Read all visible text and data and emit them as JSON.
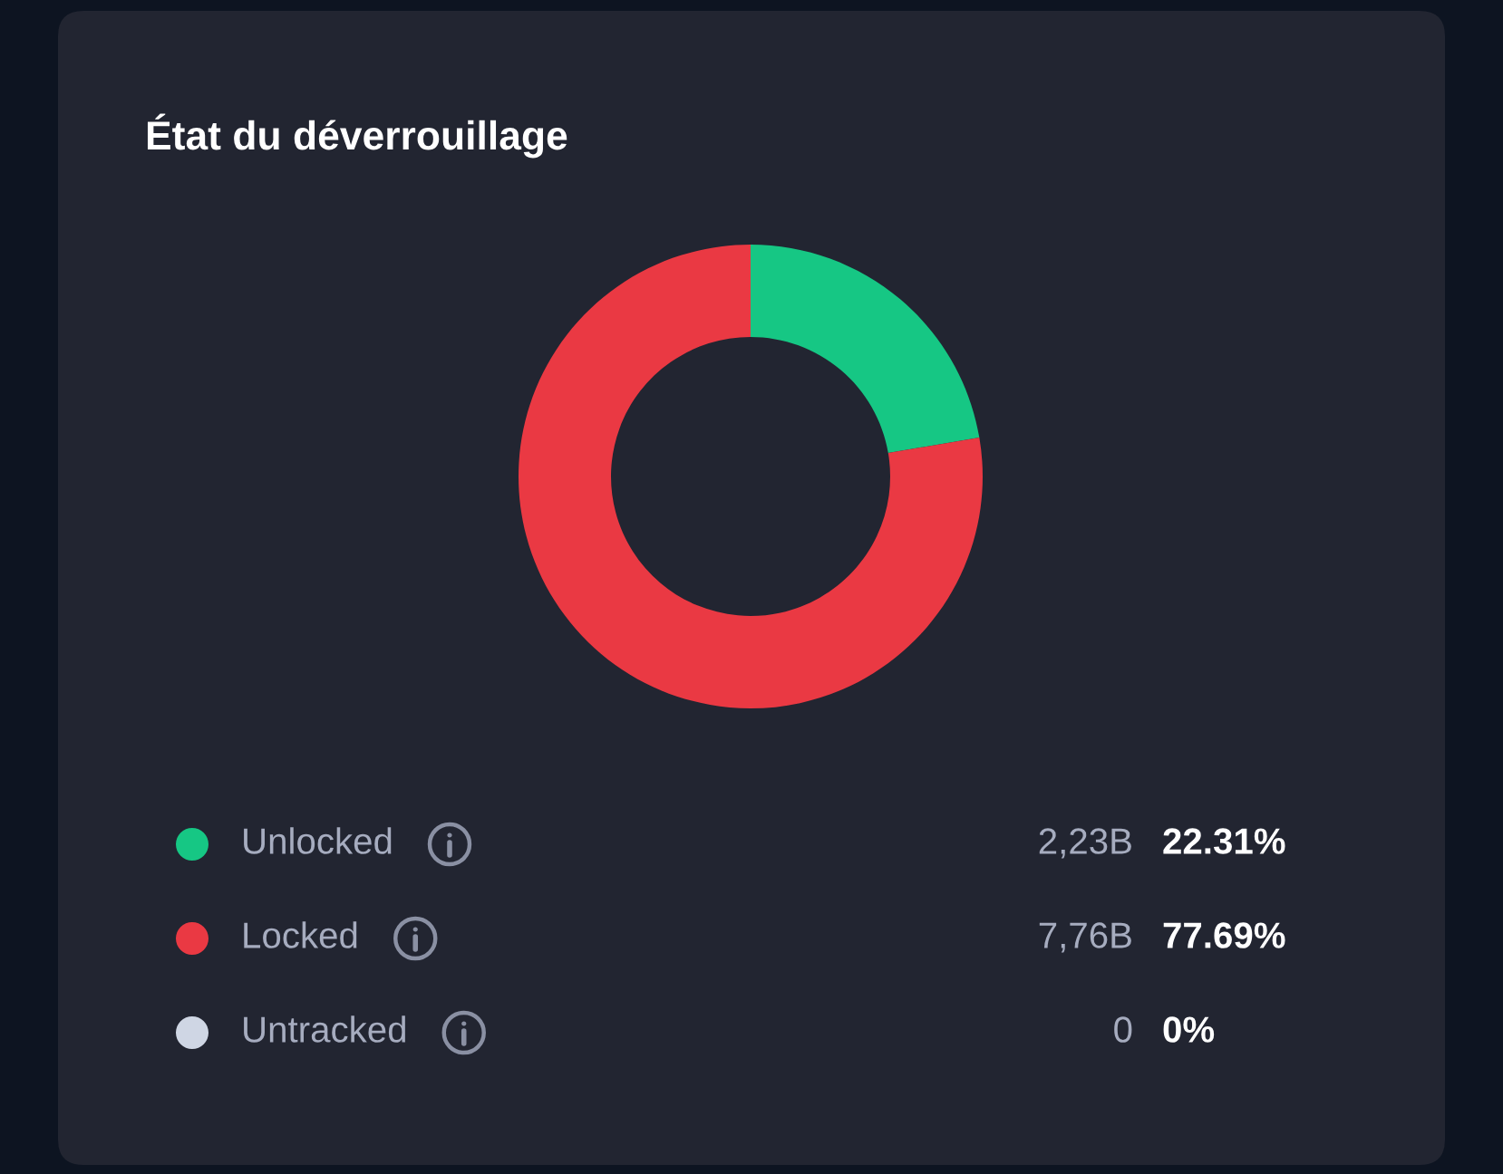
{
  "chart_data": {
    "type": "donut",
    "title": "État du déverrouillage",
    "categories": [
      "Unlocked",
      "Locked",
      "Untracked"
    ],
    "values": [
      22.31,
      77.69,
      0
    ],
    "colors": [
      "#16c784",
      "#ea3943",
      "#cfd6e4"
    ],
    "value_labels": [
      "22.31%",
      "77.69%",
      "0%"
    ],
    "annotations": [
      "2,23B",
      "7,76B",
      "0"
    ],
    "legend": "bottom"
  }
}
